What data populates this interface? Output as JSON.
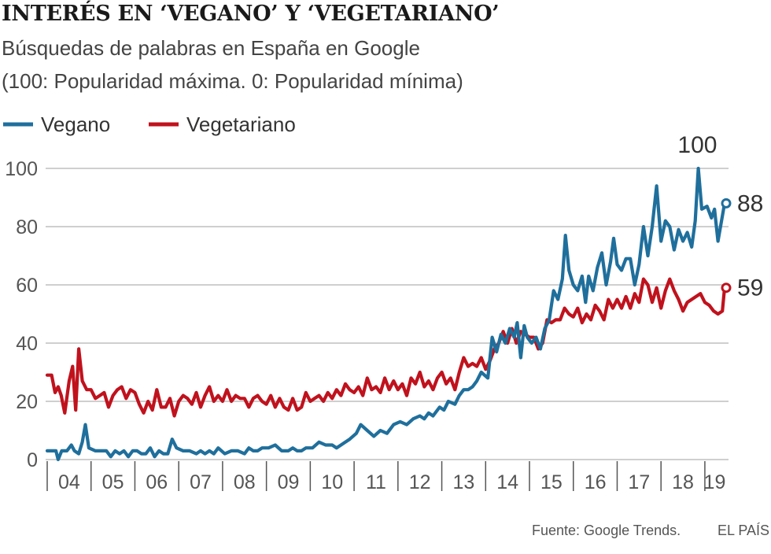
{
  "header": {
    "title": "INTERÉS EN ‘VEGANO’ Y ‘VEGETARIANO’",
    "subtitle_1": "Búsquedas de palabras en España en Google",
    "subtitle_2": "(100: Popularidad máxima. 0: Popularidad mínima)"
  },
  "footer": {
    "source": "Fuente: Google Trends.",
    "credit": "EL PAÍS"
  },
  "colors": {
    "vegano": "#1f6f9c",
    "vegetariano": "#c0121d",
    "grid": "#bfbfbf",
    "axis": "#555555"
  },
  "chart_data": {
    "type": "line",
    "xlim": [
      2004,
      2019.45
    ],
    "ylim": [
      0,
      100
    ],
    "yticks": [
      0,
      20,
      40,
      60,
      80,
      100
    ],
    "xticks": [
      "04",
      "05",
      "06",
      "07",
      "08",
      "09",
      "10",
      "11",
      "12",
      "13",
      "14",
      "15",
      "16",
      "17",
      "18",
      "19"
    ],
    "grid": true,
    "legend_position": "top-left",
    "annotations": [
      {
        "label": "100",
        "x": 2018.83,
        "y": 100
      },
      {
        "label": "88",
        "x": 2019.45,
        "y": 88
      },
      {
        "label": "59",
        "x": 2019.45,
        "y": 59
      }
    ],
    "series": [
      {
        "name": "Vegano",
        "color": "#1f6f9c",
        "points": [
          [
            2004.0,
            3
          ],
          [
            2004.1,
            3
          ],
          [
            2004.2,
            3
          ],
          [
            2004.25,
            0
          ],
          [
            2004.33,
            3
          ],
          [
            2004.45,
            3
          ],
          [
            2004.55,
            5
          ],
          [
            2004.62,
            3
          ],
          [
            2004.72,
            2
          ],
          [
            2004.8,
            6
          ],
          [
            2004.87,
            12
          ],
          [
            2004.95,
            4
          ],
          [
            2005.1,
            3
          ],
          [
            2005.25,
            3
          ],
          [
            2005.35,
            3
          ],
          [
            2005.45,
            1
          ],
          [
            2005.55,
            3
          ],
          [
            2005.65,
            2
          ],
          [
            2005.75,
            3
          ],
          [
            2005.85,
            1
          ],
          [
            2005.95,
            3
          ],
          [
            2006.05,
            3
          ],
          [
            2006.15,
            2
          ],
          [
            2006.25,
            2
          ],
          [
            2006.35,
            4
          ],
          [
            2006.45,
            1
          ],
          [
            2006.55,
            3
          ],
          [
            2006.65,
            2
          ],
          [
            2006.75,
            2
          ],
          [
            2006.85,
            7
          ],
          [
            2006.95,
            4
          ],
          [
            2007.1,
            3
          ],
          [
            2007.25,
            3
          ],
          [
            2007.4,
            2
          ],
          [
            2007.5,
            3
          ],
          [
            2007.6,
            2
          ],
          [
            2007.7,
            3
          ],
          [
            2007.8,
            2
          ],
          [
            2007.9,
            4
          ],
          [
            2008.05,
            2
          ],
          [
            2008.2,
            3
          ],
          [
            2008.35,
            3
          ],
          [
            2008.5,
            2
          ],
          [
            2008.6,
            4
          ],
          [
            2008.7,
            3
          ],
          [
            2008.8,
            3
          ],
          [
            2008.9,
            4
          ],
          [
            2009.05,
            4
          ],
          [
            2009.2,
            5
          ],
          [
            2009.35,
            3
          ],
          [
            2009.5,
            3
          ],
          [
            2009.6,
            4
          ],
          [
            2009.7,
            3
          ],
          [
            2009.8,
            3
          ],
          [
            2009.9,
            4
          ],
          [
            2010.05,
            4
          ],
          [
            2010.2,
            6
          ],
          [
            2010.35,
            5
          ],
          [
            2010.5,
            5
          ],
          [
            2010.6,
            4
          ],
          [
            2010.7,
            5
          ],
          [
            2010.8,
            6
          ],
          [
            2010.9,
            7
          ],
          [
            2011.05,
            9
          ],
          [
            2011.15,
            12
          ],
          [
            2011.3,
            10
          ],
          [
            2011.45,
            8
          ],
          [
            2011.6,
            10
          ],
          [
            2011.75,
            9
          ],
          [
            2011.9,
            12
          ],
          [
            2012.05,
            13
          ],
          [
            2012.2,
            12
          ],
          [
            2012.35,
            14
          ],
          [
            2012.5,
            15
          ],
          [
            2012.6,
            14
          ],
          [
            2012.7,
            16
          ],
          [
            2012.8,
            15
          ],
          [
            2012.95,
            18
          ],
          [
            2013.05,
            17
          ],
          [
            2013.15,
            20
          ],
          [
            2013.3,
            19
          ],
          [
            2013.4,
            22
          ],
          [
            2013.5,
            24
          ],
          [
            2013.6,
            24
          ],
          [
            2013.7,
            25
          ],
          [
            2013.8,
            27
          ],
          [
            2013.9,
            30
          ],
          [
            2014.05,
            28
          ],
          [
            2014.15,
            42
          ],
          [
            2014.25,
            37
          ],
          [
            2014.35,
            43
          ],
          [
            2014.45,
            40
          ],
          [
            2014.55,
            45
          ],
          [
            2014.65,
            42
          ],
          [
            2014.72,
            47
          ],
          [
            2014.8,
            35
          ],
          [
            2014.88,
            46
          ],
          [
            2014.95,
            42
          ],
          [
            2015.05,
            40
          ],
          [
            2015.15,
            42
          ],
          [
            2015.25,
            38
          ],
          [
            2015.35,
            45
          ],
          [
            2015.45,
            48
          ],
          [
            2015.55,
            58
          ],
          [
            2015.65,
            55
          ],
          [
            2015.75,
            62
          ],
          [
            2015.82,
            77
          ],
          [
            2015.9,
            65
          ],
          [
            2016.0,
            60
          ],
          [
            2016.1,
            58
          ],
          [
            2016.2,
            63
          ],
          [
            2016.28,
            54
          ],
          [
            2016.35,
            63
          ],
          [
            2016.45,
            58
          ],
          [
            2016.55,
            66
          ],
          [
            2016.65,
            71
          ],
          [
            2016.75,
            60
          ],
          [
            2016.85,
            68
          ],
          [
            2016.92,
            76
          ],
          [
            2017.0,
            67
          ],
          [
            2017.1,
            65
          ],
          [
            2017.2,
            69
          ],
          [
            2017.3,
            69
          ],
          [
            2017.4,
            60
          ],
          [
            2017.5,
            67
          ],
          [
            2017.6,
            80
          ],
          [
            2017.7,
            70
          ],
          [
            2017.8,
            80
          ],
          [
            2017.9,
            94
          ],
          [
            2018.0,
            75
          ],
          [
            2018.1,
            82
          ],
          [
            2018.2,
            80
          ],
          [
            2018.3,
            72
          ],
          [
            2018.4,
            79
          ],
          [
            2018.5,
            75
          ],
          [
            2018.6,
            78
          ],
          [
            2018.7,
            73
          ],
          [
            2018.78,
            82
          ],
          [
            2018.85,
            100
          ],
          [
            2018.93,
            86
          ],
          [
            2019.05,
            87
          ],
          [
            2019.15,
            83
          ],
          [
            2019.22,
            86
          ],
          [
            2019.3,
            75
          ],
          [
            2019.45,
            88
          ]
        ]
      },
      {
        "name": "Vegetariano",
        "color": "#c0121d",
        "points": [
          [
            2004.0,
            29
          ],
          [
            2004.1,
            29
          ],
          [
            2004.18,
            23
          ],
          [
            2004.25,
            25
          ],
          [
            2004.32,
            22
          ],
          [
            2004.4,
            16
          ],
          [
            2004.5,
            27
          ],
          [
            2004.58,
            32
          ],
          [
            2004.65,
            17
          ],
          [
            2004.72,
            38
          ],
          [
            2004.8,
            27
          ],
          [
            2004.9,
            24
          ],
          [
            2005.0,
            24
          ],
          [
            2005.1,
            21
          ],
          [
            2005.2,
            22
          ],
          [
            2005.3,
            23
          ],
          [
            2005.4,
            18
          ],
          [
            2005.5,
            22
          ],
          [
            2005.6,
            24
          ],
          [
            2005.7,
            25
          ],
          [
            2005.8,
            21
          ],
          [
            2005.9,
            24
          ],
          [
            2006.0,
            23
          ],
          [
            2006.1,
            19
          ],
          [
            2006.2,
            16
          ],
          [
            2006.3,
            20
          ],
          [
            2006.4,
            17
          ],
          [
            2006.5,
            24
          ],
          [
            2006.6,
            18
          ],
          [
            2006.7,
            18
          ],
          [
            2006.8,
            21
          ],
          [
            2006.9,
            15
          ],
          [
            2007.0,
            20
          ],
          [
            2007.1,
            22
          ],
          [
            2007.2,
            21
          ],
          [
            2007.3,
            19
          ],
          [
            2007.4,
            23
          ],
          [
            2007.5,
            18
          ],
          [
            2007.6,
            22
          ],
          [
            2007.7,
            25
          ],
          [
            2007.8,
            20
          ],
          [
            2007.9,
            22
          ],
          [
            2008.0,
            20
          ],
          [
            2008.1,
            24
          ],
          [
            2008.2,
            20
          ],
          [
            2008.3,
            22
          ],
          [
            2008.4,
            21
          ],
          [
            2008.5,
            21
          ],
          [
            2008.6,
            18
          ],
          [
            2008.7,
            21
          ],
          [
            2008.8,
            22
          ],
          [
            2008.9,
            20
          ],
          [
            2009.0,
            19
          ],
          [
            2009.1,
            22
          ],
          [
            2009.2,
            18
          ],
          [
            2009.3,
            21
          ],
          [
            2009.4,
            18
          ],
          [
            2009.5,
            17
          ],
          [
            2009.6,
            21
          ],
          [
            2009.7,
            17
          ],
          [
            2009.8,
            18
          ],
          [
            2009.9,
            23
          ],
          [
            2010.0,
            20
          ],
          [
            2010.1,
            21
          ],
          [
            2010.2,
            22
          ],
          [
            2010.3,
            20
          ],
          [
            2010.4,
            23
          ],
          [
            2010.5,
            21
          ],
          [
            2010.6,
            24
          ],
          [
            2010.7,
            22
          ],
          [
            2010.8,
            26
          ],
          [
            2010.9,
            24
          ],
          [
            2011.0,
            23
          ],
          [
            2011.1,
            25
          ],
          [
            2011.2,
            22
          ],
          [
            2011.3,
            28
          ],
          [
            2011.4,
            24
          ],
          [
            2011.5,
            25
          ],
          [
            2011.6,
            23
          ],
          [
            2011.7,
            28
          ],
          [
            2011.8,
            24
          ],
          [
            2011.9,
            27
          ],
          [
            2012.0,
            24
          ],
          [
            2012.1,
            26
          ],
          [
            2012.2,
            22
          ],
          [
            2012.3,
            28
          ],
          [
            2012.4,
            26
          ],
          [
            2012.5,
            30
          ],
          [
            2012.6,
            25
          ],
          [
            2012.7,
            27
          ],
          [
            2012.8,
            24
          ],
          [
            2012.9,
            28
          ],
          [
            2013.0,
            30
          ],
          [
            2013.1,
            26
          ],
          [
            2013.2,
            28
          ],
          [
            2013.3,
            24
          ],
          [
            2013.4,
            30
          ],
          [
            2013.5,
            35
          ],
          [
            2013.6,
            32
          ],
          [
            2013.7,
            33
          ],
          [
            2013.8,
            32
          ],
          [
            2013.9,
            35
          ],
          [
            2014.0,
            31
          ],
          [
            2014.1,
            34
          ],
          [
            2014.2,
            38
          ],
          [
            2014.3,
            40
          ],
          [
            2014.4,
            44
          ],
          [
            2014.5,
            40
          ],
          [
            2014.6,
            45
          ],
          [
            2014.7,
            40
          ],
          [
            2014.8,
            44
          ],
          [
            2014.9,
            43
          ],
          [
            2015.0,
            42
          ],
          [
            2015.1,
            42
          ],
          [
            2015.2,
            38
          ],
          [
            2015.3,
            40
          ],
          [
            2015.4,
            48
          ],
          [
            2015.5,
            47
          ],
          [
            2015.6,
            48
          ],
          [
            2015.7,
            48
          ],
          [
            2015.8,
            52
          ],
          [
            2015.9,
            50
          ],
          [
            2016.0,
            49
          ],
          [
            2016.1,
            52
          ],
          [
            2016.2,
            47
          ],
          [
            2016.3,
            50
          ],
          [
            2016.4,
            48
          ],
          [
            2016.5,
            53
          ],
          [
            2016.6,
            51
          ],
          [
            2016.7,
            48
          ],
          [
            2016.8,
            55
          ],
          [
            2016.9,
            52
          ],
          [
            2017.0,
            55
          ],
          [
            2017.1,
            52
          ],
          [
            2017.2,
            56
          ],
          [
            2017.3,
            52
          ],
          [
            2017.4,
            57
          ],
          [
            2017.5,
            54
          ],
          [
            2017.6,
            62
          ],
          [
            2017.7,
            60
          ],
          [
            2017.8,
            54
          ],
          [
            2017.9,
            59
          ],
          [
            2018.0,
            52
          ],
          [
            2018.1,
            58
          ],
          [
            2018.2,
            62
          ],
          [
            2018.3,
            58
          ],
          [
            2018.4,
            55
          ],
          [
            2018.5,
            51
          ],
          [
            2018.6,
            54
          ],
          [
            2018.7,
            55
          ],
          [
            2018.8,
            56
          ],
          [
            2018.9,
            57
          ],
          [
            2019.0,
            54
          ],
          [
            2019.1,
            53
          ],
          [
            2019.2,
            51
          ],
          [
            2019.3,
            50
          ],
          [
            2019.4,
            51
          ],
          [
            2019.45,
            59
          ]
        ]
      }
    ]
  }
}
